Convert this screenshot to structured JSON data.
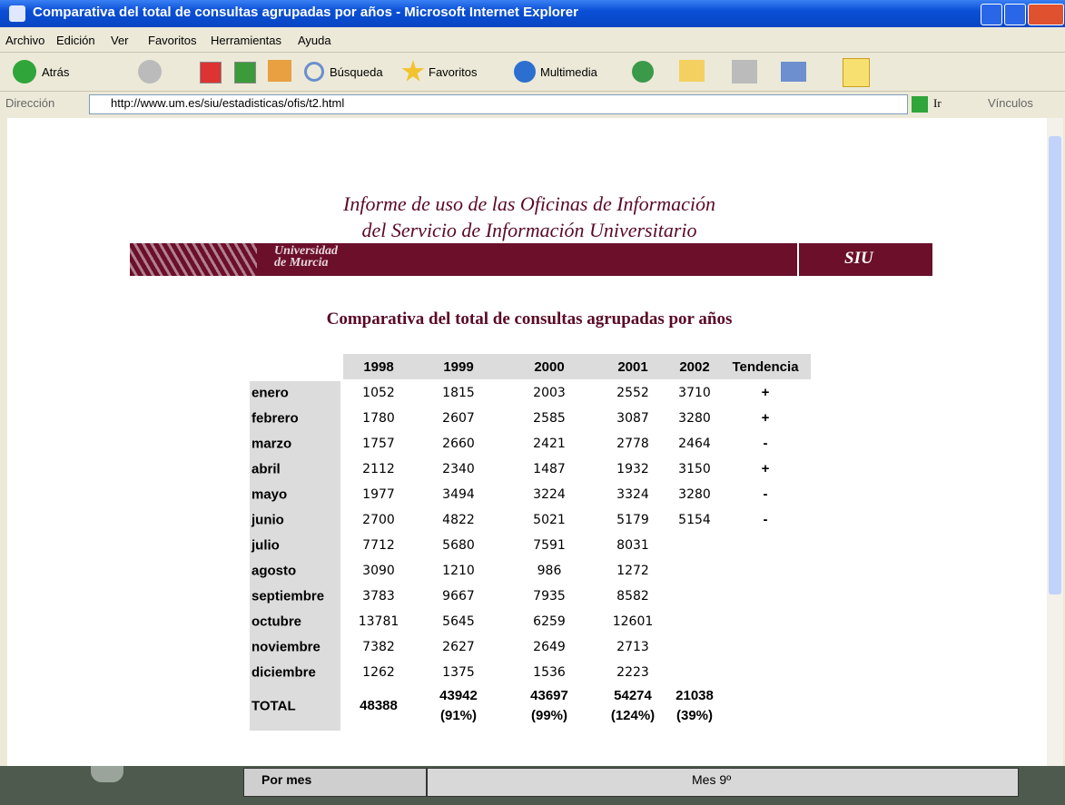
{
  "window": {
    "title": "Comparativa del total de consultas agrupadas por años - Microsoft Internet Explorer"
  },
  "menu": [
    "Archivo",
    "Edición",
    "Ver",
    "Favoritos",
    "Herramientas",
    "Ayuda"
  ],
  "toolbar": {
    "back": "Atrás",
    "search": "Búsqueda",
    "favorites": "Favoritos",
    "media": "Multimedia"
  },
  "address": {
    "label": "Dirección",
    "url": "http://www.um.es/siu/estadisticas/ofis/t2.html",
    "go": "Ir",
    "links": "Vínculos"
  },
  "page": {
    "header_line1": "Informe de uso de las Oficinas de Información",
    "header_line2": "del Servicio de Información Universitario",
    "banner_university": [
      "Universidad",
      "de Murcia"
    ],
    "banner_siu": "SIU",
    "heading": "Comparativa del total de consultas agrupadas por años"
  },
  "table": {
    "columns": [
      "1998",
      "1999",
      "2000",
      "2001",
      "2002",
      "Tendencia"
    ],
    "rows": [
      {
        "month": "enero",
        "values": [
          1052,
          1815,
          2003,
          2552,
          3710
        ],
        "trend": "+"
      },
      {
        "month": "febrero",
        "values": [
          1780,
          2607,
          2585,
          3087,
          3280
        ],
        "trend": "+"
      },
      {
        "month": "marzo",
        "values": [
          1757,
          2660,
          2421,
          2778,
          2464
        ],
        "trend": "-"
      },
      {
        "month": "abril",
        "values": [
          2112,
          2340,
          1487,
          1932,
          3150
        ],
        "trend": "+"
      },
      {
        "month": "mayo",
        "values": [
          1977,
          3494,
          3224,
          3324,
          3280
        ],
        "trend": "-"
      },
      {
        "month": "junio",
        "values": [
          2700,
          4822,
          5021,
          5179,
          5154
        ],
        "trend": "-"
      },
      {
        "month": "julio",
        "values": [
          7712,
          5680,
          7591,
          8031
        ]
      },
      {
        "month": "agosto",
        "values": [
          3090,
          1210,
          986,
          1272
        ]
      },
      {
        "month": "septiembre",
        "values": [
          3783,
          9667,
          7935,
          8582
        ]
      },
      {
        "month": "octubre",
        "values": [
          13781,
          5645,
          6259,
          12601
        ]
      },
      {
        "month": "noviembre",
        "values": [
          7382,
          2627,
          2649,
          2713
        ]
      },
      {
        "month": "diciembre",
        "values": [
          1262,
          1375,
          1536,
          2223
        ]
      }
    ],
    "total": {
      "label": "TOTAL",
      "values": [
        48388,
        43942,
        43697,
        54274,
        21038
      ],
      "percents": [
        "(91%)",
        "(99%)",
        "(124%)",
        "(39%)"
      ]
    }
  },
  "status": {
    "tab": "Por mes",
    "text": "Mes 9º"
  }
}
